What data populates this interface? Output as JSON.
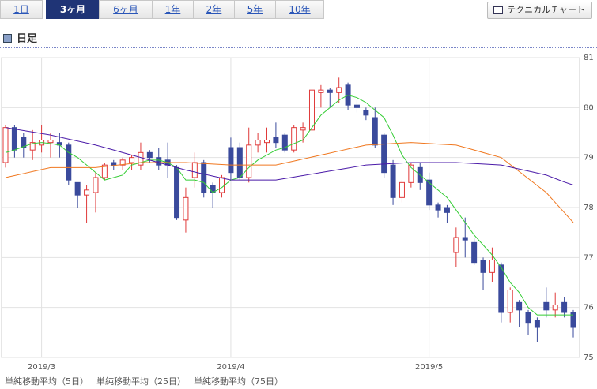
{
  "tabs": [
    "1日",
    "3ヶ月",
    "6ヶ月",
    "1年",
    "2年",
    "5年",
    "10年"
  ],
  "selected_tab": 1,
  "button": "テクニカルチャート",
  "heading": "日足",
  "chart_data": {
    "type": "candlestick",
    "categories": [
      null,
      null,
      null,
      null,
      "2019/3",
      null,
      null,
      null,
      null,
      null,
      null,
      null,
      null,
      null,
      null,
      null,
      null,
      null,
      null,
      null,
      null,
      null,
      null,
      null,
      null,
      "2019/4",
      null,
      null,
      null,
      null,
      null,
      null,
      null,
      null,
      null,
      null,
      null,
      null,
      null,
      null,
      null,
      null,
      null,
      null,
      null,
      null,
      null,
      "2019/5",
      null,
      null,
      null,
      null,
      null,
      null,
      null,
      null,
      null,
      null,
      null,
      null,
      null,
      null,
      null,
      null
    ],
    "open": [
      78.9,
      79.6,
      79.4,
      79.15,
      79.25,
      79.3,
      79.3,
      79.25,
      78.5,
      78.25,
      78.3,
      78.6,
      78.9,
      78.85,
      78.9,
      78.85,
      79.1,
      79.0,
      78.95,
      78.8,
      77.75,
      78.6,
      78.9,
      78.45,
      78.3,
      79.2,
      79.2,
      78.6,
      79.25,
      79.3,
      79.4,
      79.45,
      79.15,
      79.55,
      79.55,
      80.3,
      80.35,
      80.3,
      80.45,
      80.05,
      79.95,
      79.8,
      79.45,
      78.85,
      78.2,
      78.5,
      78.8,
      78.55,
      78.05,
      78.0,
      77.1,
      77.4,
      77.3,
      76.95,
      76.7,
      76.85,
      75.9,
      76.1,
      75.9,
      75.75,
      76.1,
      75.95,
      76.1,
      75.9
    ],
    "high": [
      79.65,
      79.65,
      79.5,
      79.55,
      79.65,
      79.5,
      79.5,
      79.3,
      78.5,
      78.45,
      78.7,
      78.9,
      78.95,
      79.0,
      79.05,
      79.3,
      79.15,
      79.2,
      79.3,
      78.85,
      78.4,
      79.1,
      78.95,
      78.5,
      78.65,
      79.4,
      79.3,
      79.6,
      79.5,
      79.6,
      79.7,
      79.5,
      79.65,
      79.7,
      80.4,
      80.45,
      80.4,
      80.6,
      80.5,
      80.15,
      80.0,
      80.0,
      79.5,
      78.95,
      78.55,
      78.9,
      78.9,
      78.7,
      78.1,
      78.05,
      77.6,
      77.8,
      77.4,
      77.0,
      77.2,
      76.9,
      76.4,
      76.15,
      75.95,
      75.8,
      76.4,
      76.3,
      76.2,
      75.95
    ],
    "low": [
      78.8,
      79.0,
      79.0,
      78.95,
      79.1,
      79.0,
      79.0,
      78.45,
      78.0,
      77.7,
      77.9,
      78.55,
      78.75,
      78.75,
      78.75,
      78.75,
      78.9,
      78.75,
      78.6,
      77.75,
      77.5,
      78.4,
      78.2,
      78.0,
      78.2,
      78.55,
      78.55,
      78.5,
      79.1,
      79.1,
      79.2,
      79.1,
      79.1,
      79.3,
      79.5,
      80.0,
      80.0,
      80.1,
      79.95,
      79.9,
      79.75,
      79.2,
      78.6,
      78.05,
      78.1,
      78.4,
      78.35,
      77.95,
      77.8,
      77.7,
      76.8,
      77.0,
      76.85,
      76.35,
      76.5,
      75.7,
      75.7,
      75.6,
      75.45,
      75.3,
      75.8,
      75.8,
      75.8,
      75.4
    ],
    "close": [
      79.6,
      79.15,
      79.2,
      79.3,
      79.35,
      79.35,
      79.25,
      78.55,
      78.25,
      78.35,
      78.6,
      78.85,
      78.85,
      78.95,
      79.0,
      79.1,
      79.0,
      78.85,
      78.85,
      77.8,
      78.2,
      78.9,
      78.3,
      78.3,
      78.6,
      78.7,
      78.6,
      79.25,
      79.35,
      79.35,
      79.3,
      79.15,
      79.6,
      79.6,
      80.35,
      80.35,
      80.3,
      80.4,
      80.05,
      80.0,
      79.85,
      79.25,
      78.7,
      78.2,
      78.5,
      78.85,
      78.5,
      78.05,
      77.95,
      77.9,
      77.4,
      77.35,
      76.9,
      76.7,
      76.95,
      75.9,
      76.35,
      75.95,
      75.7,
      75.6,
      75.95,
      76.05,
      75.9,
      75.6
    ],
    "up_color": "#e03a3a",
    "down_color": "#3a4a9c",
    "series": [
      {
        "name": "単純移動平均（5日）",
        "color": "#33cc33",
        "values": [
          79.1,
          79.15,
          79.22,
          79.28,
          79.3,
          79.28,
          79.25,
          79.1,
          79.0,
          78.85,
          78.7,
          78.55,
          78.6,
          78.65,
          78.85,
          78.9,
          78.95,
          78.95,
          78.9,
          78.8,
          78.55,
          78.55,
          78.5,
          78.3,
          78.4,
          78.55,
          78.6,
          78.8,
          78.95,
          79.05,
          79.15,
          79.2,
          79.28,
          79.35,
          79.6,
          79.85,
          80.0,
          80.15,
          80.25,
          80.2,
          80.1,
          79.95,
          79.8,
          79.45,
          79.05,
          78.8,
          78.65,
          78.5,
          78.35,
          78.2,
          77.95,
          77.7,
          77.45,
          77.25,
          77.05,
          76.8,
          76.5,
          76.3,
          76.0,
          75.85,
          75.85,
          75.85,
          75.85,
          75.85
        ]
      },
      {
        "name": "単純移動平均（25日）",
        "color": "#f07820",
        "values": [
          78.6,
          78.64,
          78.68,
          78.72,
          78.76,
          78.8,
          78.8,
          78.8,
          78.8,
          78.8,
          78.8,
          78.82,
          78.84,
          78.86,
          78.88,
          78.9,
          78.9,
          78.9,
          78.9,
          78.9,
          78.9,
          78.89,
          78.88,
          78.87,
          78.86,
          78.85,
          78.85,
          78.85,
          78.85,
          78.85,
          78.85,
          78.89,
          78.93,
          78.97,
          79.01,
          79.05,
          79.09,
          79.13,
          79.17,
          79.21,
          79.25,
          79.26,
          79.27,
          79.28,
          79.29,
          79.3,
          79.29,
          79.28,
          79.27,
          79.26,
          79.25,
          79.2,
          79.15,
          79.1,
          79.05,
          79.0,
          78.86,
          78.72,
          78.58,
          78.44,
          78.3,
          78.1,
          77.9,
          77.7
        ]
      },
      {
        "name": "単純移動平均（75日）",
        "color": "#4a1aa8",
        "values": [
          79.6,
          79.57,
          79.54,
          79.51,
          79.48,
          79.45,
          79.41,
          79.37,
          79.33,
          79.29,
          79.25,
          79.2,
          79.15,
          79.1,
          79.05,
          79.0,
          78.95,
          78.9,
          78.85,
          78.8,
          78.75,
          78.71,
          78.67,
          78.63,
          78.59,
          78.55,
          78.55,
          78.55,
          78.55,
          78.55,
          78.55,
          78.58,
          78.61,
          78.64,
          78.67,
          78.7,
          78.73,
          78.76,
          78.79,
          78.82,
          78.85,
          78.86,
          78.87,
          78.88,
          78.89,
          78.9,
          78.9,
          78.9,
          78.9,
          78.9,
          78.9,
          78.89,
          78.88,
          78.87,
          78.86,
          78.85,
          78.81,
          78.77,
          78.73,
          78.69,
          78.65,
          78.58,
          78.51,
          78.45
        ]
      }
    ],
    "ylim": [
      75,
      81
    ],
    "yticks": [
      75,
      76,
      77,
      78,
      79,
      80,
      81
    ],
    "grid": true
  }
}
